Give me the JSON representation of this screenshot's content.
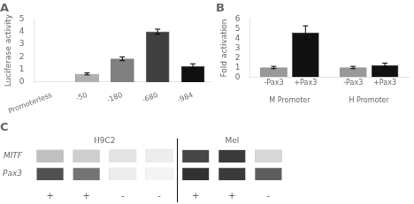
{
  "chart_data": [
    {
      "type": "bar",
      "title": "A",
      "categories": [
        "Promoterless",
        "-50",
        "-180",
        "-680",
        "-984"
      ],
      "values": [
        0,
        0.65,
        1.85,
        4.0,
        1.25
      ],
      "errors": [
        0,
        0.08,
        0.15,
        0.2,
        0.2
      ],
      "colors": [
        "#ffffff",
        "#b0b0b0",
        "#808080",
        "#404040",
        "#101010"
      ],
      "ylabel": "Luciferase activity",
      "ylim": [
        0,
        5
      ],
      "yticks": [
        0,
        1,
        2,
        3,
        4,
        5
      ],
      "grid": false
    },
    {
      "type": "bar",
      "title": "B",
      "categories": [
        "M Promoter",
        "H Promoter"
      ],
      "series": [
        {
          "name": "-Pax3",
          "color": "#999999",
          "values": [
            1.0,
            1.0
          ],
          "errors": [
            0.12,
            0.12
          ]
        },
        {
          "name": "+Pax3",
          "color": "#111111",
          "values": [
            4.6,
            1.25
          ],
          "errors": [
            0.7,
            0.2
          ]
        }
      ],
      "ylabel": "Fold activation",
      "ylim": [
        0,
        6
      ],
      "yticks": [
        0,
        1,
        2,
        3,
        4,
        5,
        6
      ],
      "grid": false
    },
    {
      "type": "heatmap",
      "title": "C",
      "rows": [
        "MITF",
        "Pax3"
      ],
      "groups": [
        {
          "name": "H9C2",
          "categories": [
            "+",
            "+",
            "-",
            "-"
          ],
          "cells": [
            [
              0.28,
              0.22,
              0.12,
              0.08
            ],
            [
              0.78,
              0.62,
              0.08,
              0.05
            ]
          ]
        },
        {
          "name": "Mel",
          "categories": [
            "+",
            "+",
            "-"
          ],
          "cells": [
            [
              0.82,
              0.88,
              0.18
            ],
            [
              0.92,
              0.88,
              0.72
            ]
          ]
        }
      ],
      "grid": false
    }
  ]
}
